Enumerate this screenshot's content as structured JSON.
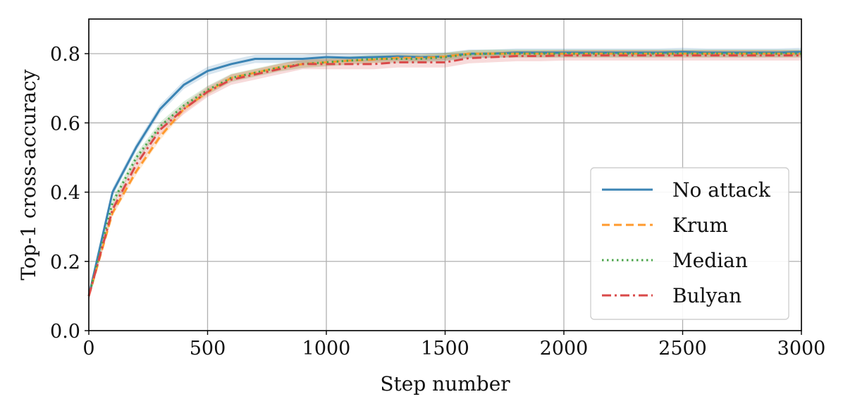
{
  "chart_data": {
    "type": "line",
    "title": "",
    "xlabel": "Step number",
    "ylabel": "Top-1 cross-accuracy",
    "xlim": [
      0,
      3000
    ],
    "ylim": [
      0.0,
      0.9
    ],
    "xticks": [
      "0",
      "500",
      "1000",
      "1500",
      "2000",
      "2500",
      "3000"
    ],
    "yticks": [
      "0.0",
      "0.2",
      "0.4",
      "0.6",
      "0.8"
    ],
    "grid": true,
    "legend_position": "lower-right",
    "x": [
      0,
      100,
      200,
      300,
      400,
      500,
      600,
      700,
      800,
      900,
      1000,
      1100,
      1200,
      1300,
      1400,
      1500,
      1600,
      1700,
      1800,
      1900,
      2000,
      2100,
      2200,
      2300,
      2400,
      2500,
      2600,
      2700,
      2800,
      2900,
      3000
    ],
    "series": [
      {
        "name": "No attack",
        "color": "#3b84b4",
        "dash": "solid",
        "values": [
          0.1,
          0.4,
          0.53,
          0.64,
          0.71,
          0.75,
          0.77,
          0.785,
          0.785,
          0.785,
          0.79,
          0.788,
          0.79,
          0.792,
          0.79,
          0.792,
          0.8,
          0.8,
          0.803,
          0.803,
          0.803,
          0.803,
          0.803,
          0.803,
          0.803,
          0.805,
          0.803,
          0.803,
          0.803,
          0.803,
          0.805
        ],
        "band": 0.012
      },
      {
        "name": "Krum",
        "color": "#ff9a2e",
        "dash": "dashed",
        "values": [
          0.1,
          0.34,
          0.46,
          0.56,
          0.64,
          0.69,
          0.73,
          0.745,
          0.76,
          0.77,
          0.775,
          0.78,
          0.783,
          0.788,
          0.788,
          0.792,
          0.8,
          0.8,
          0.8,
          0.8,
          0.8,
          0.8,
          0.8,
          0.8,
          0.8,
          0.8,
          0.8,
          0.8,
          0.8,
          0.8,
          0.8
        ],
        "band": 0.01
      },
      {
        "name": "Median",
        "color": "#4aa64a",
        "dash": "dotted",
        "values": [
          0.1,
          0.37,
          0.5,
          0.59,
          0.65,
          0.695,
          0.73,
          0.745,
          0.76,
          0.77,
          0.775,
          0.78,
          0.785,
          0.785,
          0.785,
          0.79,
          0.798,
          0.8,
          0.8,
          0.8,
          0.8,
          0.8,
          0.8,
          0.8,
          0.8,
          0.8,
          0.8,
          0.8,
          0.8,
          0.8,
          0.8
        ],
        "band": 0.012
      },
      {
        "name": "Bulyan",
        "color": "#d94949",
        "dash": "dashdot",
        "values": [
          0.1,
          0.35,
          0.48,
          0.58,
          0.64,
          0.69,
          0.725,
          0.74,
          0.755,
          0.77,
          0.77,
          0.77,
          0.77,
          0.775,
          0.775,
          0.775,
          0.787,
          0.79,
          0.793,
          0.793,
          0.795,
          0.795,
          0.795,
          0.795,
          0.795,
          0.795,
          0.795,
          0.795,
          0.795,
          0.795,
          0.795
        ],
        "band": 0.015
      }
    ]
  }
}
